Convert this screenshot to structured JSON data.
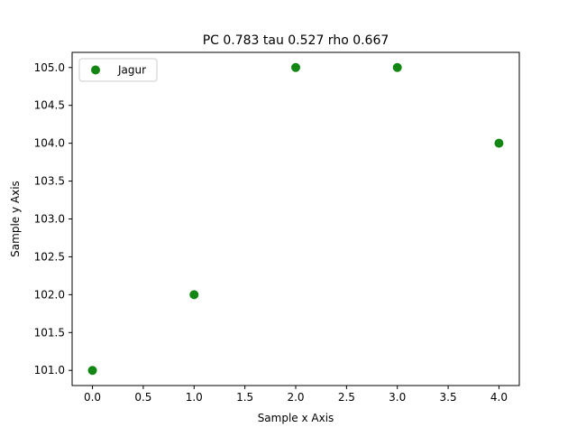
{
  "chart_data": {
    "type": "scatter",
    "title": "PC 0.783 tau 0.527 rho 0.667",
    "xlabel": "Sample x Axis",
    "ylabel": "Sample y Axis",
    "xlim": [
      -0.2,
      4.2
    ],
    "ylim": [
      100.8,
      105.2
    ],
    "xticks": [
      0.0,
      0.5,
      1.0,
      1.5,
      2.0,
      2.5,
      3.0,
      3.5,
      4.0
    ],
    "xtick_labels": [
      "0.0",
      "0.5",
      "1.0",
      "1.5",
      "2.0",
      "2.5",
      "3.0",
      "3.5",
      "4.0"
    ],
    "yticks": [
      101.0,
      101.5,
      102.0,
      102.5,
      103.0,
      103.5,
      104.0,
      104.5,
      105.0
    ],
    "ytick_labels": [
      "101.0",
      "101.5",
      "102.0",
      "102.5",
      "103.0",
      "103.5",
      "104.0",
      "104.5",
      "105.0"
    ],
    "grid": false,
    "legend_position": "upper left",
    "series": [
      {
        "name": "Jagur",
        "color": "#138613",
        "x": [
          0,
          1,
          2,
          3,
          4
        ],
        "y": [
          101,
          102,
          105,
          105,
          104
        ]
      }
    ]
  }
}
